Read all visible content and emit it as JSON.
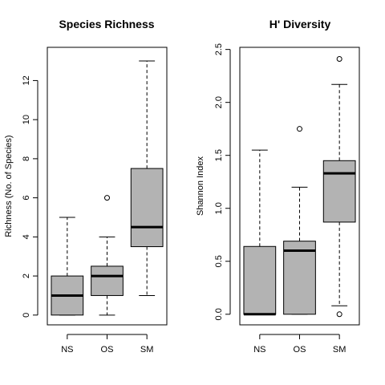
{
  "chart_data": [
    {
      "type": "boxplot",
      "title": "Species Richness",
      "xlabel": "",
      "ylabel": "Richness (No. of Species)",
      "categories": [
        "NS",
        "OS",
        "SM"
      ],
      "ylim": [
        -0.5,
        13.7
      ],
      "yticks": [
        0,
        2,
        4,
        6,
        8,
        10,
        12
      ],
      "ytick_labels": [
        "0",
        "2",
        "4",
        "6",
        "8",
        "10",
        "12"
      ],
      "boxes": [
        {
          "whisker_low": 0,
          "q1": 0,
          "median": 1,
          "q3": 2,
          "whisker_high": 5,
          "outliers": []
        },
        {
          "whisker_low": 0,
          "q1": 1,
          "median": 2,
          "q3": 2.5,
          "whisker_high": 4,
          "outliers": [
            6
          ]
        },
        {
          "whisker_low": 1,
          "q1": 3.5,
          "median": 4.5,
          "q3": 7.5,
          "whisker_high": 13,
          "outliers": []
        }
      ],
      "grid": false,
      "box_color": "#b3b3b3"
    },
    {
      "type": "boxplot",
      "title": "H' Diversity",
      "xlabel": "",
      "ylabel": "Shannon Index",
      "categories": [
        "NS",
        "OS",
        "SM"
      ],
      "ylim": [
        -0.1,
        2.52
      ],
      "yticks": [
        0,
        0.5,
        1,
        1.5,
        2,
        2.5
      ],
      "ytick_labels": [
        "0.0",
        "0.5",
        "1.0",
        "1.5",
        "2.0",
        "2.5"
      ],
      "boxes": [
        {
          "whisker_low": 0,
          "q1": 0,
          "median": 0,
          "q3": 0.64,
          "whisker_high": 1.55,
          "outliers": []
        },
        {
          "whisker_low": 0,
          "q1": 0,
          "median": 0.6,
          "q3": 0.69,
          "whisker_high": 1.2,
          "outliers": [
            1.75
          ]
        },
        {
          "whisker_low": 0.08,
          "q1": 0.87,
          "median": 1.33,
          "q3": 1.45,
          "whisker_high": 2.17,
          "outliers": [
            2.41,
            0
          ]
        }
      ],
      "grid": false,
      "box_color": "#b3b3b3"
    }
  ]
}
